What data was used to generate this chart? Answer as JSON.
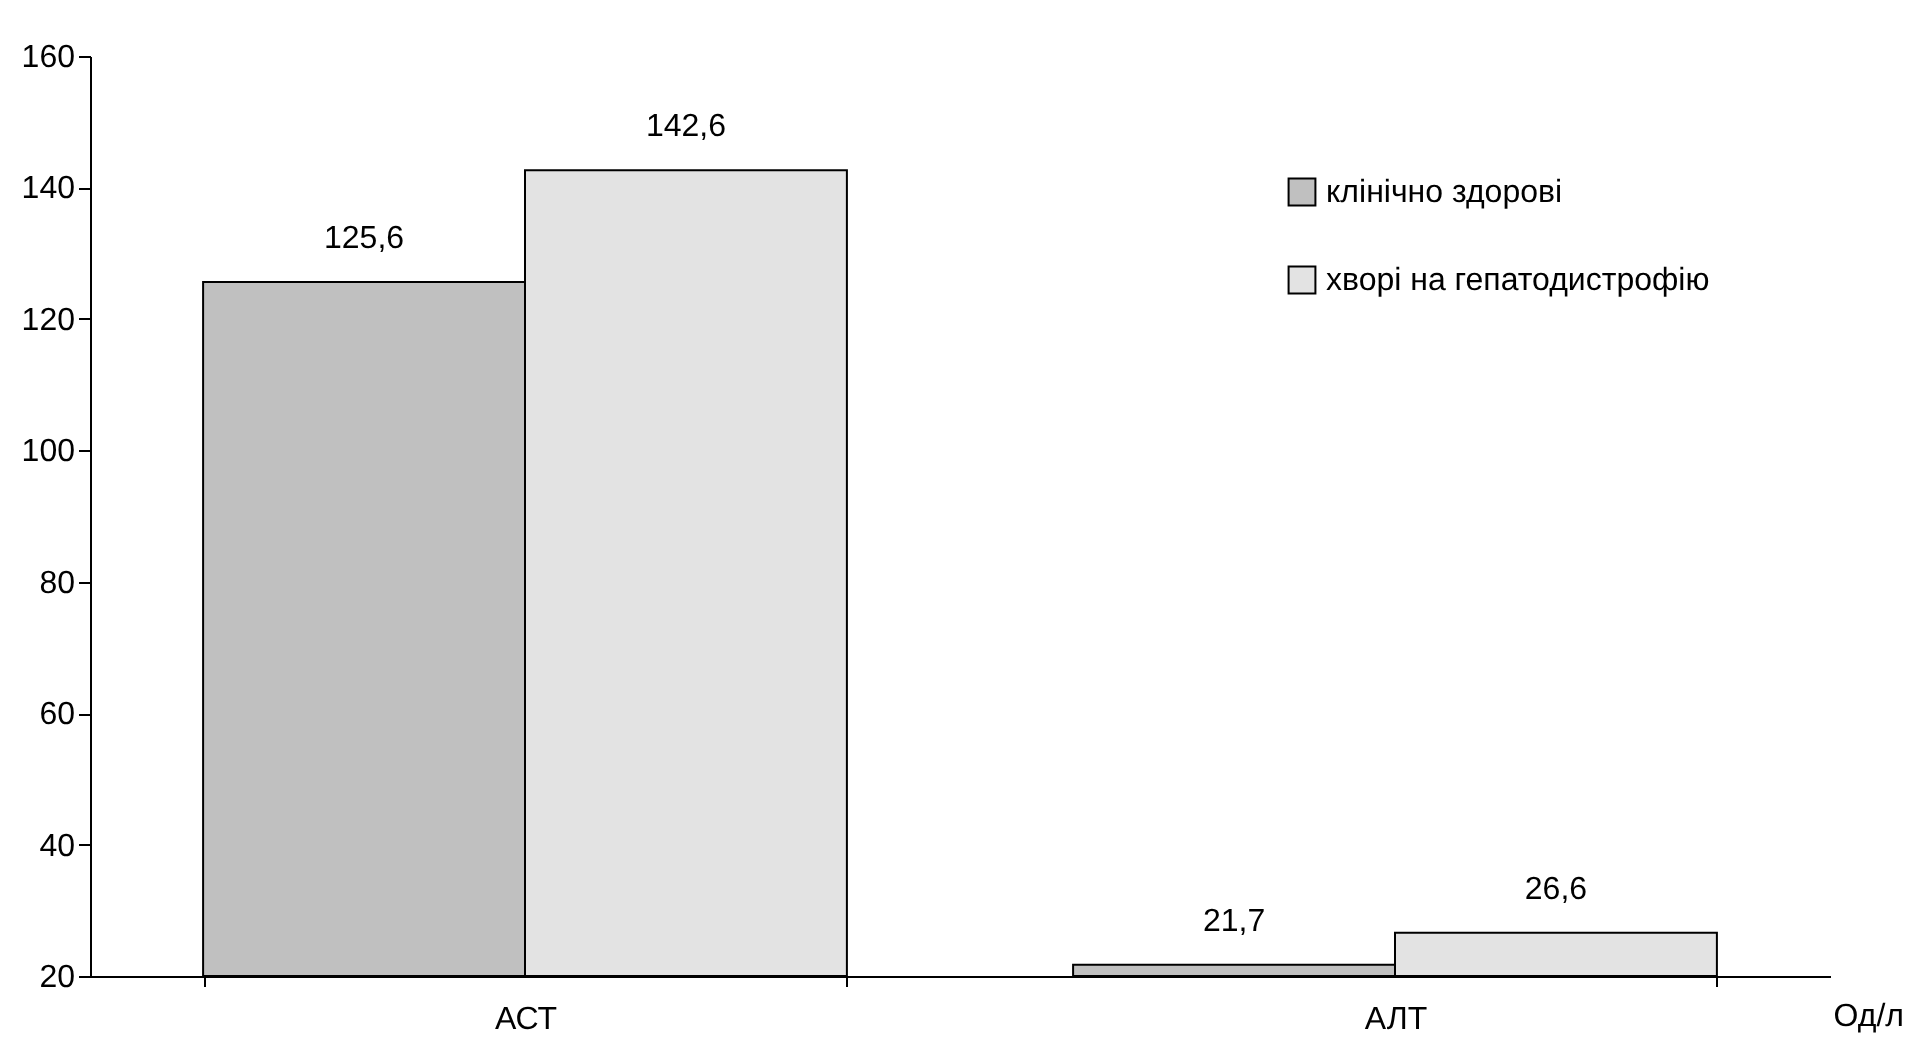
{
  "chart_data": {
    "type": "bar",
    "categories": [
      "АСТ",
      "АЛТ"
    ],
    "series": [
      {
        "name": "клінічно здорові",
        "color": "#c0c0c0",
        "values": [
          125.6,
          21.7
        ],
        "value_labels": [
          "125,6",
          "21,7"
        ]
      },
      {
        "name": "хворі на гепатодистрофію",
        "color": "#e3e3e3",
        "values": [
          142.6,
          26.6
        ],
        "value_labels": [
          "142,6",
          "26,6"
        ]
      }
    ],
    "ylim": [
      20,
      160
    ],
    "yticks": [
      20,
      40,
      60,
      80,
      100,
      120,
      140,
      160
    ],
    "grid": false,
    "legend": "top right",
    "annotations": [
      "Од/л"
    ]
  }
}
